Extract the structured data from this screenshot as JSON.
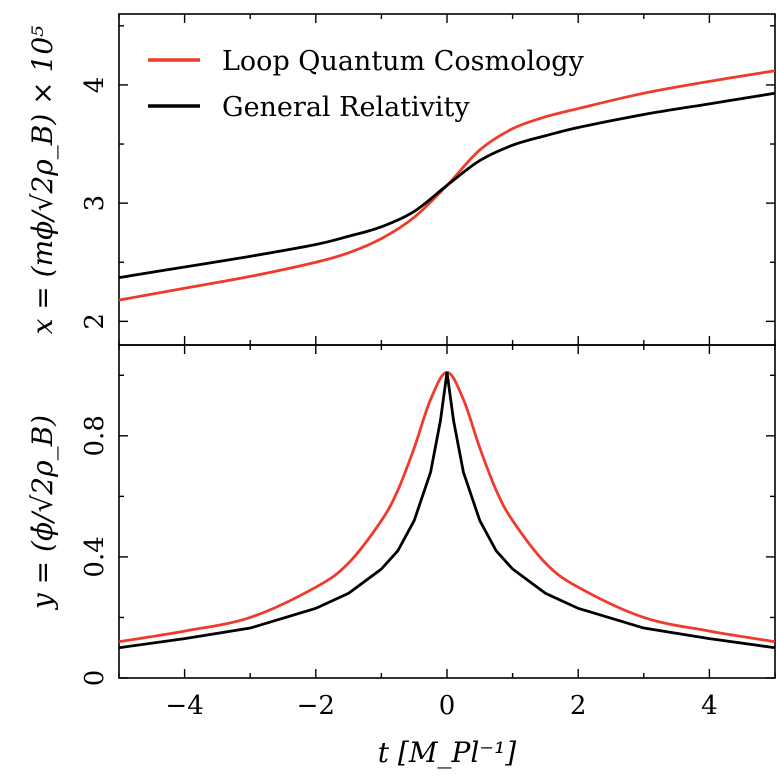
{
  "chart_data": [
    {
      "type": "line",
      "panel": "top",
      "ylabel": "x = (mϕ/√2ρ_B) × 10⁵",
      "xlim": [
        -5,
        5
      ],
      "ylim": [
        1.8,
        4.6
      ],
      "yticks": [
        2,
        3,
        4
      ],
      "ytick_labels": [
        "2",
        "3",
        "4"
      ],
      "legend_position": "top-left",
      "series": [
        {
          "name": "Loop Quantum Cosmology",
          "color": "#ee3b2b",
          "x": [
            -5,
            -4,
            -3,
            -2,
            -1.5,
            -1,
            -0.5,
            0,
            0.5,
            1,
            1.5,
            2,
            3,
            4,
            5
          ],
          "y": [
            2.18,
            2.28,
            2.38,
            2.5,
            2.58,
            2.7,
            2.88,
            3.15,
            3.45,
            3.63,
            3.73,
            3.8,
            3.93,
            4.03,
            4.12
          ]
        },
        {
          "name": "General Relativity",
          "color": "#000000",
          "x": [
            -5,
            -4,
            -3,
            -2,
            -1.5,
            -1,
            -0.5,
            0,
            0.5,
            1,
            1.5,
            2,
            3,
            4,
            5
          ],
          "y": [
            2.37,
            2.46,
            2.55,
            2.65,
            2.72,
            2.8,
            2.93,
            3.15,
            3.36,
            3.49,
            3.57,
            3.64,
            3.75,
            3.84,
            3.93
          ]
        }
      ]
    },
    {
      "type": "line",
      "panel": "bottom",
      "ylabel": "y = (ϕ̇/√2ρ_B)",
      "xlabel": "t [M_Pl⁻¹]",
      "xlim": [
        -5,
        5
      ],
      "ylim": [
        0,
        1.1
      ],
      "yticks": [
        0,
        0.4,
        0.8
      ],
      "ytick_labels": [
        "0",
        "0.4",
        "0.8"
      ],
      "xticks": [
        -4,
        -2,
        0,
        2,
        4
      ],
      "xtick_labels": [
        "−4",
        "−2",
        "0",
        "2",
        "4"
      ],
      "series": [
        {
          "name": "Loop Quantum Cosmology",
          "color": "#ee3b2b",
          "x": [
            -5,
            -4,
            -3,
            -2,
            -1.5,
            -1,
            -0.75,
            -0.5,
            -0.25,
            0,
            0.25,
            0.5,
            0.75,
            1,
            1.5,
            2,
            3,
            4,
            5
          ],
          "y": [
            0.12,
            0.155,
            0.2,
            0.3,
            0.38,
            0.52,
            0.62,
            0.76,
            0.92,
            1.01,
            0.92,
            0.76,
            0.62,
            0.52,
            0.38,
            0.3,
            0.2,
            0.155,
            0.12
          ]
        },
        {
          "name": "General Relativity",
          "color": "#000000",
          "x": [
            -5,
            -4,
            -3,
            -2,
            -1.5,
            -1,
            -0.75,
            -0.5,
            -0.25,
            -0.1,
            0,
            0.1,
            0.25,
            0.5,
            0.75,
            1,
            1.5,
            2,
            3,
            4,
            5
          ],
          "y": [
            0.1,
            0.13,
            0.165,
            0.23,
            0.28,
            0.36,
            0.42,
            0.52,
            0.68,
            0.85,
            1.01,
            0.85,
            0.68,
            0.52,
            0.42,
            0.36,
            0.28,
            0.23,
            0.165,
            0.13,
            0.1
          ]
        }
      ]
    }
  ]
}
